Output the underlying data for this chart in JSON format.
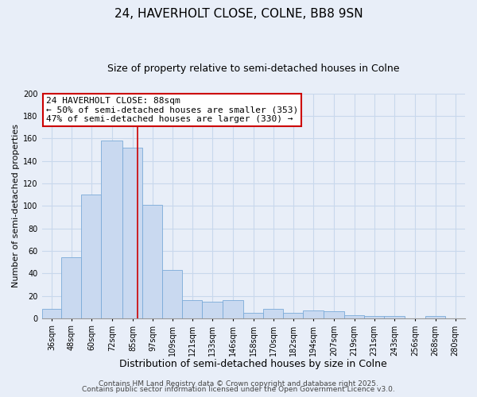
{
  "title": "24, HAVERHOLT CLOSE, COLNE, BB8 9SN",
  "subtitle": "Size of property relative to semi-detached houses in Colne",
  "xlabel": "Distribution of semi-detached houses by size in Colne",
  "ylabel": "Number of semi-detached properties",
  "bin_labels": [
    "36sqm",
    "48sqm",
    "60sqm",
    "72sqm",
    "85sqm",
    "97sqm",
    "109sqm",
    "121sqm",
    "133sqm",
    "146sqm",
    "158sqm",
    "170sqm",
    "182sqm",
    "194sqm",
    "207sqm",
    "219sqm",
    "231sqm",
    "243sqm",
    "256sqm",
    "268sqm",
    "280sqm"
  ],
  "bin_edges": [
    30,
    42,
    54,
    66,
    79,
    91,
    103,
    115,
    127,
    139.5,
    152,
    164,
    176,
    188,
    200.5,
    213,
    225,
    237,
    249.5,
    262,
    274,
    286
  ],
  "counts": [
    8,
    54,
    110,
    158,
    152,
    101,
    43,
    16,
    15,
    16,
    5,
    8,
    5,
    7,
    6,
    3,
    2,
    2,
    0,
    2,
    0
  ],
  "bar_facecolor": "#c9d9f0",
  "bar_edgecolor": "#7aaad8",
  "vline_x": 88,
  "vline_color": "#cc0000",
  "annotation_line1": "24 HAVERHOLT CLOSE: 88sqm",
  "annotation_line2": "← 50% of semi-detached houses are smaller (353)",
  "annotation_line3": "47% of semi-detached houses are larger (330) →",
  "annotation_box_facecolor": "white",
  "annotation_box_edgecolor": "#cc0000",
  "ylim": [
    0,
    200
  ],
  "yticks": [
    0,
    20,
    40,
    60,
    80,
    100,
    120,
    140,
    160,
    180,
    200
  ],
  "grid_color": "#c8d8ec",
  "background_color": "#e8eef8",
  "footer_line1": "Contains HM Land Registry data © Crown copyright and database right 2025.",
  "footer_line2": "Contains public sector information licensed under the Open Government Licence v3.0.",
  "title_fontsize": 11,
  "subtitle_fontsize": 9,
  "xlabel_fontsize": 9,
  "ylabel_fontsize": 8,
  "tick_fontsize": 7,
  "annotation_fontsize": 8,
  "footer_fontsize": 6.5
}
